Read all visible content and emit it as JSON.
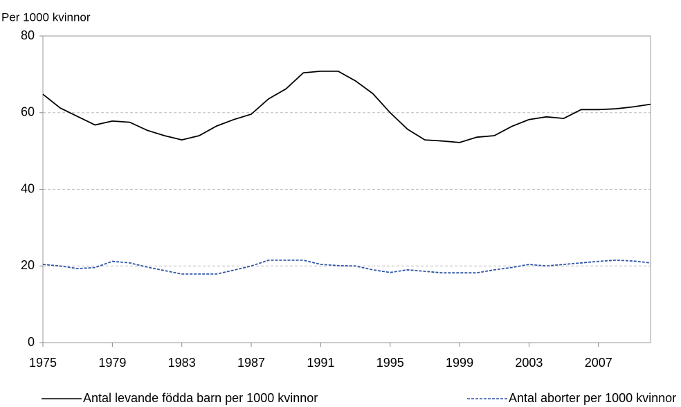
{
  "chart_data": {
    "type": "line",
    "y_label": "Per 1000 kvinnor",
    "x": [
      1975,
      1976,
      1977,
      1978,
      1979,
      1980,
      1981,
      1982,
      1983,
      1984,
      1985,
      1986,
      1987,
      1988,
      1989,
      1990,
      1991,
      1992,
      1993,
      1994,
      1995,
      1996,
      1997,
      1998,
      1999,
      2000,
      2001,
      2002,
      2003,
      2004,
      2005,
      2006,
      2007,
      2008,
      2009,
      2010
    ],
    "series": [
      {
        "name": "Antal levande födda barn per 1000 kvinnor",
        "color": "#000000",
        "dash": false,
        "values": [
          64.8,
          61.2,
          59,
          56.8,
          57.8,
          57.5,
          55.4,
          54,
          52.9,
          54,
          56.5,
          58.2,
          59.6,
          63.6,
          66.2,
          70.4,
          70.8,
          70.8,
          68.3,
          65,
          60,
          55.7,
          52.9,
          52.6,
          52.2,
          53.6,
          54,
          56.4,
          58.2,
          58.9,
          58.5,
          60.8,
          60.8,
          61,
          61.5,
          62.2
        ]
      },
      {
        "name": "Antal aborter per 1000 kvinnor",
        "color": "#2e55a5",
        "dash": true,
        "values": [
          20.4,
          20,
          19.3,
          19.6,
          21.2,
          20.8,
          19.7,
          18.8,
          17.9,
          17.9,
          17.9,
          18.9,
          20,
          21.5,
          21.5,
          21.5,
          20.4,
          20.1,
          20,
          19,
          18.3,
          19,
          18.6,
          18.2,
          18.2,
          18.2,
          19,
          19.6,
          20.4,
          20,
          20.4,
          20.8,
          21.2,
          21.5,
          21.3,
          20.8
        ]
      }
    ],
    "xlim": [
      1975,
      2010
    ],
    "xticks": [
      1975,
      1979,
      1983,
      1987,
      1991,
      1995,
      1999,
      2003,
      2007
    ],
    "ylim": [
      0,
      80
    ],
    "yticks": [
      0,
      20,
      40,
      60,
      80
    ],
    "grid": true,
    "legend": "bottom"
  }
}
